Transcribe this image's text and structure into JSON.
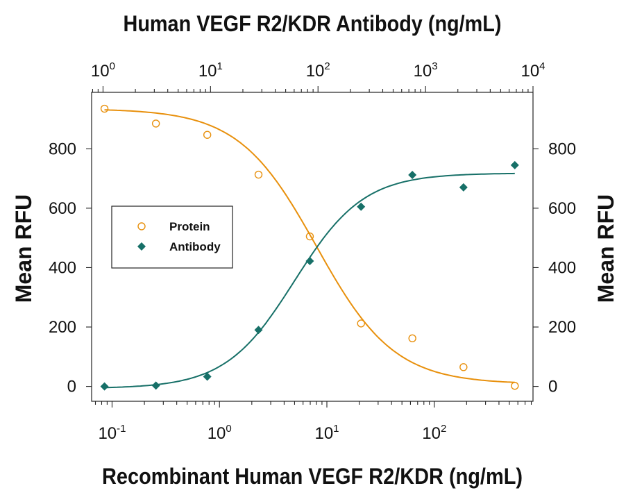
{
  "chart_data": {
    "type": "scatter",
    "title": "Human VEGF R2/KDR Antibody (ng/mL)",
    "xlabel": "Recombinant Human VEGF R2/KDR (ng/mL)",
    "x2label": "Human VEGF R2/KDR Antibody (ng/mL)",
    "ylabel": "Mean RFU",
    "y2label": "Mean RFU",
    "x_scale": "log",
    "xlim": [
      0.0645,
      830
    ],
    "x2_scale": "log",
    "x2lim": [
      0.783,
      10000
    ],
    "ylim": [
      -50,
      990
    ],
    "y_ticks": [
      "0",
      "200",
      "400",
      "600",
      "800"
    ],
    "y_tick_values": [
      0,
      200,
      400,
      600,
      800
    ],
    "x_ticks": [
      {
        "base": "10",
        "exp": "-1",
        "value": 0.1
      },
      {
        "base": "10",
        "exp": "0",
        "value": 1
      },
      {
        "base": "10",
        "exp": "1",
        "value": 10
      },
      {
        "base": "10",
        "exp": "2",
        "value": 100
      }
    ],
    "x2_ticks": [
      {
        "base": "10",
        "exp": "0",
        "value": 1
      },
      {
        "base": "10",
        "exp": "1",
        "value": 10
      },
      {
        "base": "10",
        "exp": "2",
        "value": 100
      },
      {
        "base": "10",
        "exp": "3",
        "value": 1000
      },
      {
        "base": "10",
        "exp": "4",
        "value": 10000
      }
    ],
    "legend_position": "left",
    "series": [
      {
        "name": "Protein",
        "axis": "bottom",
        "marker": "open-circle",
        "color": "#E8900C",
        "x": [
          0.085,
          0.256,
          0.77,
          2.31,
          6.94,
          20.8,
          62.5,
          187,
          562
        ],
        "y": [
          935,
          885,
          847,
          713,
          505,
          212,
          162,
          65,
          2
        ],
        "fit": {
          "top": 935,
          "bottom": 8,
          "ec50": 8.0,
          "hill": 1.2
        }
      },
      {
        "name": "Antibody",
        "axis": "bottom",
        "marker": "filled-diamond",
        "color": "#177068",
        "x": [
          0.085,
          0.256,
          0.77,
          2.31,
          6.94,
          20.8,
          62.5,
          187,
          562
        ],
        "y": [
          0,
          3,
          33,
          190,
          422,
          605,
          712,
          670,
          745
        ],
        "fit": {
          "top": 718,
          "bottom": -7,
          "ec50": 5.0,
          "hill": 1.35
        }
      }
    ]
  }
}
